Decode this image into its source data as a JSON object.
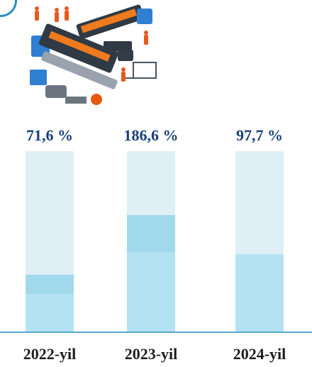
{
  "chart_data": {
    "type": "bar",
    "categories": [
      "2022-yil",
      "2023-yil",
      "2024-yil"
    ],
    "values": [
      71.6,
      186.6,
      97.7
    ],
    "value_labels": [
      "71,6 %",
      "186,6 %",
      "97,7 %"
    ],
    "ylim": [
      0,
      100
    ],
    "reference_value": 100,
    "grid": false,
    "colors": {
      "track": "#deeff5",
      "fill": "#b3e3f3",
      "over": "#a2d8ec",
      "value_text": "#1b3f7a",
      "baseline": "#5aa7c9"
    }
  },
  "illustration": {
    "icon": "factory-illustration-icon"
  }
}
